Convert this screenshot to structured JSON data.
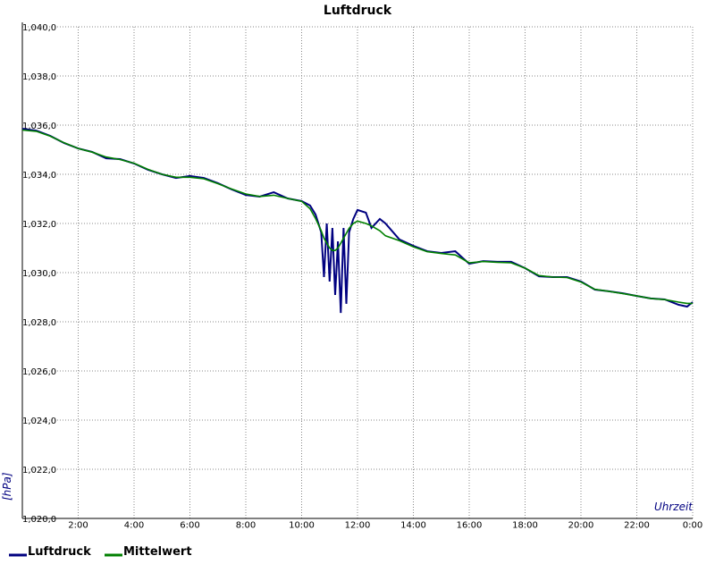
{
  "chart_data": {
    "type": "line",
    "title": "Luftdruck",
    "y_label": "[hPa]",
    "x_label": "Uhrzeit",
    "x": [
      0,
      0.5,
      1,
      1.5,
      2,
      2.5,
      3,
      3.5,
      4,
      4.5,
      5,
      5.5,
      6,
      6.5,
      7,
      7.5,
      8,
      8.5,
      9,
      9.5,
      10,
      10.3,
      10.5,
      10.7,
      10.8,
      10.9,
      11,
      11.1,
      11.2,
      11.3,
      11.4,
      11.5,
      11.6,
      11.7,
      11.85,
      12,
      12.3,
      12.5,
      12.8,
      13,
      13.5,
      14,
      14.5,
      15,
      15.5,
      16,
      16.5,
      17,
      17.5,
      18,
      18.5,
      19,
      19.5,
      20,
      20.5,
      21,
      21.5,
      22,
      22.5,
      23,
      23.5,
      23.8,
      24
    ],
    "series": [
      {
        "name": "Luftdruck",
        "color": "#000080",
        "values": [
          1035.85,
          1035.78,
          1035.56,
          1035.27,
          1035.05,
          1034.91,
          1034.65,
          1034.62,
          1034.44,
          1034.18,
          1034.0,
          1033.85,
          1033.93,
          1033.85,
          1033.64,
          1033.38,
          1033.16,
          1033.09,
          1033.27,
          1033.02,
          1032.91,
          1032.73,
          1032.36,
          1031.64,
          1029.82,
          1032.0,
          1029.64,
          1031.82,
          1029.09,
          1031.27,
          1028.36,
          1031.82,
          1028.73,
          1031.64,
          1032.18,
          1032.55,
          1032.44,
          1031.82,
          1032.18,
          1032.0,
          1031.35,
          1031.09,
          1030.87,
          1030.8,
          1030.87,
          1030.36,
          1030.47,
          1030.44,
          1030.44,
          1030.18,
          1029.85,
          1029.82,
          1029.82,
          1029.64,
          1029.31,
          1029.24,
          1029.16,
          1029.05,
          1028.95,
          1028.91,
          1028.69,
          1028.62,
          1028.8
        ]
      },
      {
        "name": "Mittelwert",
        "color": "#008000",
        "values": [
          1035.8,
          1035.75,
          1035.55,
          1035.28,
          1035.05,
          1034.9,
          1034.7,
          1034.6,
          1034.45,
          1034.2,
          1034.0,
          1033.88,
          1033.88,
          1033.82,
          1033.62,
          1033.4,
          1033.2,
          1033.1,
          1033.15,
          1033.02,
          1032.9,
          1032.6,
          1032.2,
          1031.7,
          1031.4,
          1031.2,
          1031.0,
          1030.9,
          1030.9,
          1031.0,
          1031.2,
          1031.4,
          1031.6,
          1031.8,
          1032.0,
          1032.1,
          1032.0,
          1031.9,
          1031.7,
          1031.5,
          1031.3,
          1031.05,
          1030.85,
          1030.78,
          1030.72,
          1030.4,
          1030.45,
          1030.42,
          1030.4,
          1030.18,
          1029.88,
          1029.82,
          1029.8,
          1029.62,
          1029.32,
          1029.24,
          1029.15,
          1029.05,
          1028.95,
          1028.9,
          1028.8,
          1028.75,
          1028.75
        ]
      }
    ],
    "xlim": [
      0,
      24
    ],
    "xticks": [
      {
        "value": 2,
        "label": "2:00"
      },
      {
        "value": 4,
        "label": "4:00"
      },
      {
        "value": 6,
        "label": "6:00"
      },
      {
        "value": 8,
        "label": "8:00"
      },
      {
        "value": 10,
        "label": "10:00"
      },
      {
        "value": 12,
        "label": "12:00"
      },
      {
        "value": 14,
        "label": "14:00"
      },
      {
        "value": 16,
        "label": "16:00"
      },
      {
        "value": 18,
        "label": "18:00"
      },
      {
        "value": 20,
        "label": "20:00"
      },
      {
        "value": 22,
        "label": "22:00"
      },
      {
        "value": 24,
        "label": "0:00"
      }
    ],
    "ylim": [
      1020,
      1040
    ],
    "yticks": [
      {
        "value": 1020,
        "label": "1,020,0"
      },
      {
        "value": 1022,
        "label": "1,022,0"
      },
      {
        "value": 1024,
        "label": "1,024,0"
      },
      {
        "value": 1026,
        "label": "1,026,0"
      },
      {
        "value": 1028,
        "label": "1,028,0"
      },
      {
        "value": 1030,
        "label": "1,030,0"
      },
      {
        "value": 1032,
        "label": "1,032,0"
      },
      {
        "value": 1034,
        "label": "1,034,0"
      },
      {
        "value": 1036,
        "label": "1,036,0"
      },
      {
        "value": 1038,
        "label": "1,038,0"
      },
      {
        "value": 1040,
        "label": "1,040,0"
      }
    ],
    "grid": true,
    "legend": "bottom-left"
  }
}
